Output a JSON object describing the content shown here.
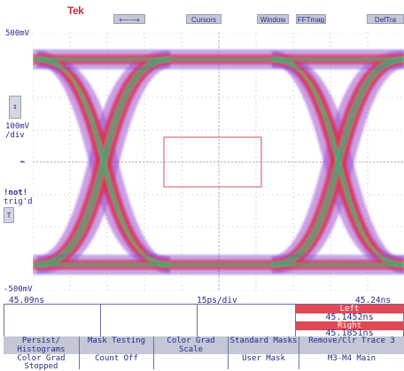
{
  "header": {
    "logo": "Tek",
    "buttons": [
      {
        "id": "arrows",
        "label": "⟵⟶",
        "icon": "left-right-arrow-icon"
      },
      {
        "id": "cursors",
        "label": "Cursors"
      },
      {
        "id": "window",
        "label": "Window"
      },
      {
        "id": "fftmag",
        "label": "FFTmag"
      },
      {
        "id": "deftra",
        "label": "DefTra"
      }
    ]
  },
  "scale": {
    "top": "500mV",
    "bottom": "-500mV",
    "volts_per_div_value": "100mV",
    "volts_per_div_unit": "/div",
    "trigger_state_line1": "!not!",
    "trigger_state_line2": "trig'd"
  },
  "xaxis": {
    "left": "45.09ns",
    "center": "15ps/div",
    "right": "45.24ns"
  },
  "cursors": {
    "left_label": "Left",
    "left_value": "45.1452ns",
    "right_label": "Right",
    "right_value": "45.1851ns"
  },
  "menu": [
    {
      "title": "Persist/ Histograms",
      "value": "Color Grad Stopped"
    },
    {
      "title": "Mask Testing",
      "value": "Count Off"
    },
    {
      "title": "Color Grad Scale",
      "value": ""
    },
    {
      "title": "Standard Masks",
      "value": "User Mask"
    },
    {
      "title": "Remove/Clr Trace 3",
      "value": "M3-M4 Main"
    }
  ],
  "colors": {
    "purple": "#a050d0",
    "red": "#e0324a",
    "green": "#30b080",
    "blue": "#3a5ad0",
    "grid": "#8a90b0",
    "accent": "#e04a56"
  }
}
